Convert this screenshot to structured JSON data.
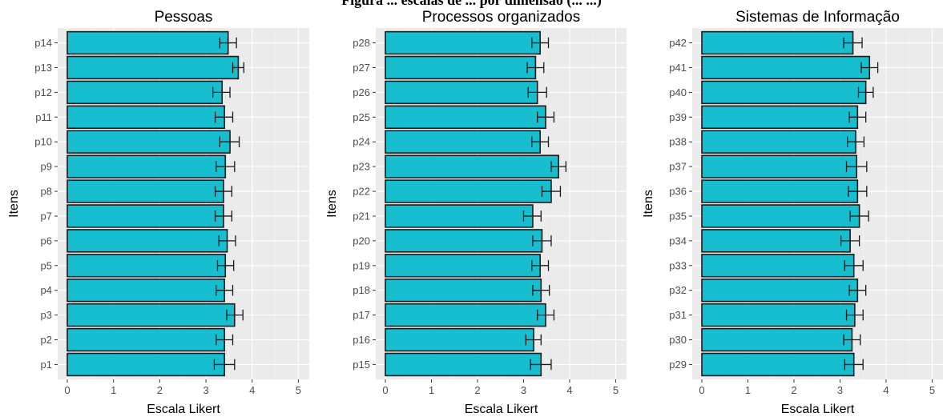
{
  "heading": "Figura ... escalas de ... por dimensão (... ...)",
  "colors": {
    "bar_fill": "#17becf",
    "bar_stroke": "#1a1a1a",
    "panel_bg": "#ebebeb",
    "grid": "#ffffff"
  },
  "chart_data": [
    {
      "type": "bar",
      "orientation": "horizontal",
      "title": "Pessoas",
      "xlabel": "Escala Likert",
      "ylabel": "Itens",
      "xlim": [
        0,
        5
      ],
      "xticks": [
        "0",
        "1",
        "2",
        "3",
        "4",
        "5"
      ],
      "grid": true,
      "categories": [
        "p1",
        "p2",
        "p3",
        "p4",
        "p5",
        "p6",
        "p7",
        "p8",
        "p9",
        "p10",
        "p11",
        "p12",
        "p13",
        "p14"
      ],
      "values": [
        3.4,
        3.4,
        3.62,
        3.4,
        3.42,
        3.46,
        3.38,
        3.38,
        3.42,
        3.52,
        3.4,
        3.35,
        3.7,
        3.48
      ],
      "error_low": [
        3.18,
        3.22,
        3.45,
        3.22,
        3.25,
        3.28,
        3.2,
        3.2,
        3.22,
        3.3,
        3.2,
        3.15,
        3.58,
        3.3
      ],
      "error_high": [
        3.62,
        3.58,
        3.8,
        3.58,
        3.6,
        3.64,
        3.56,
        3.56,
        3.62,
        3.72,
        3.58,
        3.52,
        3.82,
        3.66
      ]
    },
    {
      "type": "bar",
      "orientation": "horizontal",
      "title": "Processos organizados",
      "xlabel": "Escala Likert",
      "ylabel": "Itens",
      "xlim": [
        0,
        5
      ],
      "xticks": [
        "0",
        "1",
        "2",
        "3",
        "4",
        "5"
      ],
      "grid": true,
      "categories": [
        "p15",
        "p16",
        "p17",
        "p18",
        "p19",
        "p20",
        "p21",
        "p22",
        "p23",
        "p24",
        "p25",
        "p26",
        "p27",
        "p28"
      ],
      "values": [
        3.38,
        3.22,
        3.48,
        3.38,
        3.36,
        3.4,
        3.2,
        3.6,
        3.76,
        3.36,
        3.48,
        3.3,
        3.26,
        3.36
      ],
      "error_low": [
        3.15,
        3.05,
        3.3,
        3.2,
        3.18,
        3.2,
        3.0,
        3.4,
        3.6,
        3.18,
        3.3,
        3.1,
        3.08,
        3.18
      ],
      "error_high": [
        3.6,
        3.38,
        3.66,
        3.56,
        3.54,
        3.6,
        3.38,
        3.8,
        3.92,
        3.54,
        3.66,
        3.5,
        3.44,
        3.54
      ]
    },
    {
      "type": "bar",
      "orientation": "horizontal",
      "title": "Sistemas de Informação",
      "xlabel": "Escala Likert",
      "ylabel": "Itens",
      "xlim": [
        0,
        5
      ],
      "xticks": [
        "0",
        "1",
        "2",
        "3",
        "4",
        "5"
      ],
      "grid": true,
      "categories": [
        "p29",
        "p30",
        "p31",
        "p32",
        "p33",
        "p34",
        "p35",
        "p36",
        "p37",
        "p38",
        "p39",
        "p40",
        "p41",
        "p42"
      ],
      "values": [
        3.3,
        3.26,
        3.32,
        3.38,
        3.3,
        3.22,
        3.42,
        3.38,
        3.36,
        3.34,
        3.38,
        3.56,
        3.64,
        3.28
      ],
      "error_low": [
        3.1,
        3.08,
        3.14,
        3.2,
        3.1,
        3.02,
        3.22,
        3.18,
        3.14,
        3.16,
        3.2,
        3.4,
        3.46,
        3.08
      ],
      "error_high": [
        3.5,
        3.44,
        3.5,
        3.56,
        3.5,
        3.42,
        3.62,
        3.58,
        3.58,
        3.52,
        3.56,
        3.72,
        3.82,
        3.48
      ]
    }
  ]
}
